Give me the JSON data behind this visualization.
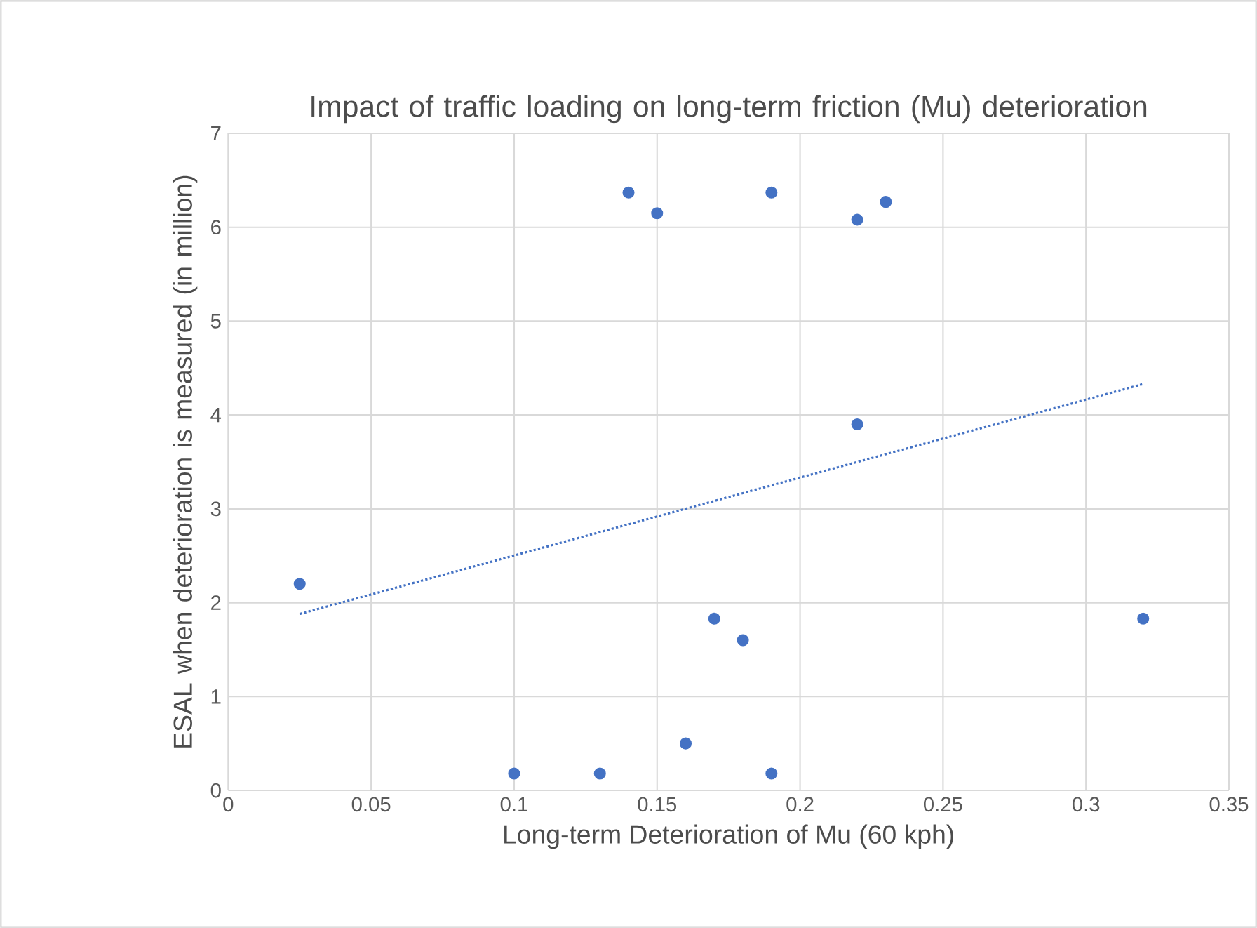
{
  "chart_data": {
    "type": "scatter",
    "title": "Impact of traffic loading on long-term friction (Mu) deterioration",
    "xlabel": "Long-term Deterioration of Mu (60 kph)",
    "ylabel": "ESAL when deterioration is measured (in million)",
    "xlim": [
      0,
      0.35
    ],
    "ylim": [
      0,
      7
    ],
    "xticks": [
      0,
      0.05,
      0.1,
      0.15,
      0.2,
      0.25,
      0.3,
      0.35
    ],
    "yticks": [
      0,
      1,
      2,
      3,
      4,
      5,
      6,
      7
    ],
    "grid": true,
    "series": [
      {
        "color": "#4472c4",
        "marker": "circle",
        "x": [
          0.025,
          0.1,
          0.13,
          0.14,
          0.15,
          0.16,
          0.17,
          0.18,
          0.19,
          0.19,
          0.22,
          0.22,
          0.23,
          0.32
        ],
        "values": [
          2.2,
          0.18,
          0.18,
          6.37,
          6.15,
          0.5,
          1.83,
          1.6,
          6.37,
          0.18,
          6.08,
          3.9,
          6.27,
          1.83
        ]
      },
      {
        "type": "line",
        "color": "#4472c4",
        "marker": "none",
        "line_style": "dotted",
        "x": [
          0.025,
          0.32
        ],
        "values": [
          1.88,
          4.33
        ]
      }
    ]
  }
}
